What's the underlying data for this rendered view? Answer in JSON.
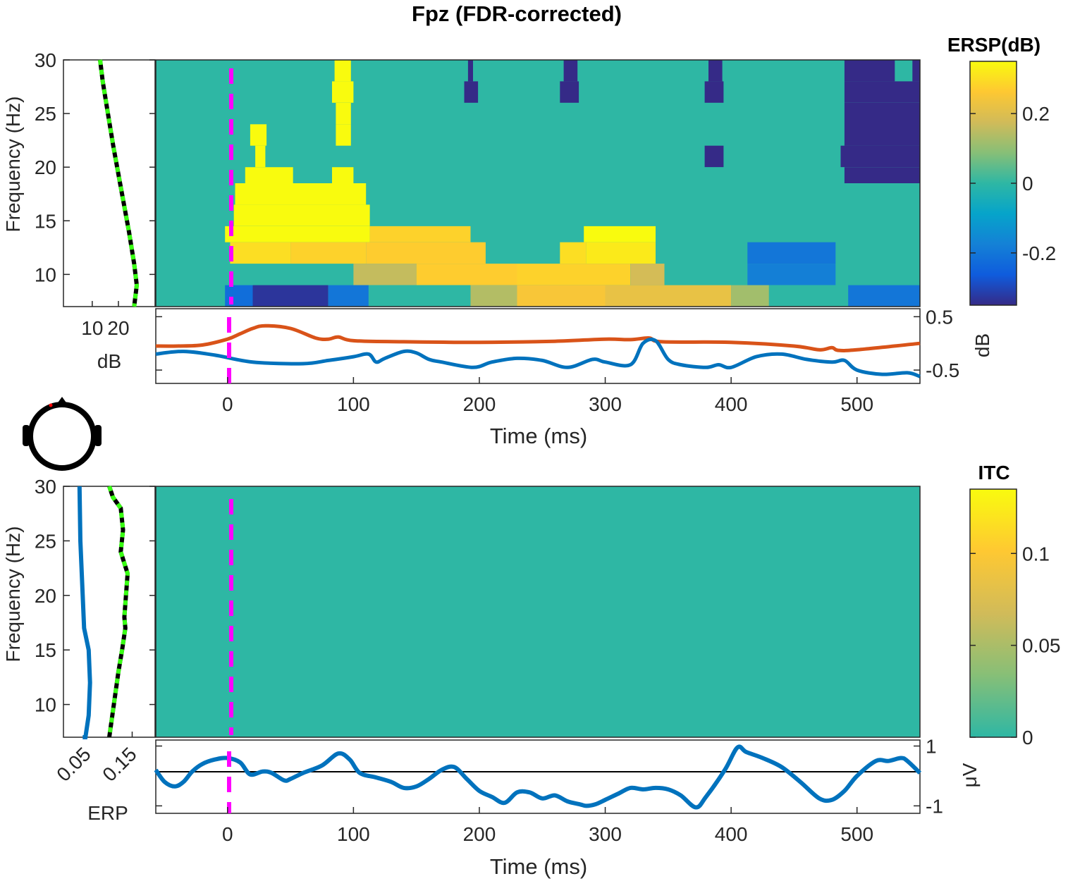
{
  "figure": {
    "title": "Fpz (FDR-corrected)"
  },
  "colors": {
    "zero": "#13BEB8",
    "blue": "#0072BD",
    "orange": "#D95319",
    "green": "#39FF14",
    "magenta": "#FF00FF",
    "axis": "#262626",
    "colormap": [
      "#352A87",
      "#0F5CDD",
      "#1481D6",
      "#06A4CA",
      "#2EB7A4",
      "#87BF77",
      "#D1BB59",
      "#FEC832",
      "#F9FB0E"
    ]
  },
  "chart_data": [
    {
      "id": "ersp",
      "type": "heatmap",
      "ylabel": "Frequency (Hz)",
      "xlim": [
        -57,
        550
      ],
      "ylim": [
        7,
        30
      ],
      "yticks": [
        10,
        15,
        20,
        25,
        30
      ],
      "colorbar": {
        "title": "ERSP(dB)",
        "range": [
          -0.35,
          0.35
        ],
        "ticks": [
          -0.2,
          0,
          0.2
        ],
        "ticklabels": [
          "-0.2",
          "0",
          "0.2"
        ]
      },
      "background_value": 0,
      "blocks": [
        {
          "t": [
            85,
            98
          ],
          "f": [
            28,
            30
          ],
          "v": 0.35
        },
        {
          "t": [
            83,
            100
          ],
          "f": [
            26,
            28
          ],
          "v": 0.35
        },
        {
          "t": [
            86,
            98
          ],
          "f": [
            24,
            26
          ],
          "v": 0.35
        },
        {
          "t": [
            86,
            98
          ],
          "f": [
            22,
            24
          ],
          "v": 0.35
        },
        {
          "t": [
            18,
            31
          ],
          "f": [
            22,
            24
          ],
          "v": 0.35
        },
        {
          "t": [
            22,
            30
          ],
          "f": [
            20,
            22
          ],
          "v": 0.35
        },
        {
          "t": [
            14,
            52
          ],
          "f": [
            18.5,
            20
          ],
          "v": 0.35
        },
        {
          "t": [
            83,
            100
          ],
          "f": [
            18.5,
            20
          ],
          "v": 0.35
        },
        {
          "t": [
            6,
            110
          ],
          "f": [
            16.5,
            18.5
          ],
          "v": 0.35
        },
        {
          "t": [
            5,
            113
          ],
          "f": [
            14.5,
            16.5
          ],
          "v": 0.35
        },
        {
          "t": [
            -2,
            113
          ],
          "f": [
            13,
            14.5
          ],
          "v": 0.35
        },
        {
          "t": [
            113,
            193
          ],
          "f": [
            13,
            14.5
          ],
          "v": 0.28
        },
        {
          "t": [
            283,
            340
          ],
          "f": [
            13,
            14.5
          ],
          "v": 0.35
        },
        {
          "t": [
            2,
            50
          ],
          "f": [
            11,
            13
          ],
          "v": 0.3
        },
        {
          "t": [
            50,
            110
          ],
          "f": [
            11,
            13
          ],
          "v": 0.28
        },
        {
          "t": [
            110,
            205
          ],
          "f": [
            11,
            13
          ],
          "v": 0.27
        },
        {
          "t": [
            264,
            285
          ],
          "f": [
            11,
            13
          ],
          "v": 0.3
        },
        {
          "t": [
            285,
            340
          ],
          "f": [
            11,
            13
          ],
          "v": 0.32
        },
        {
          "t": [
            100,
            150
          ],
          "f": [
            9,
            11
          ],
          "v": 0.16
        },
        {
          "t": [
            150,
            230
          ],
          "f": [
            9,
            11
          ],
          "v": 0.27
        },
        {
          "t": [
            230,
            320
          ],
          "f": [
            9,
            11
          ],
          "v": 0.28
        },
        {
          "t": [
            320,
            347
          ],
          "f": [
            9,
            11
          ],
          "v": 0.18
        },
        {
          "t": [
            -2,
            20
          ],
          "f": [
            7,
            9
          ],
          "v": -0.22
        },
        {
          "t": [
            20,
            80
          ],
          "f": [
            7,
            9
          ],
          "v": -0.33
        },
        {
          "t": [
            80,
            112
          ],
          "f": [
            7,
            9
          ],
          "v": -0.2
        },
        {
          "t": [
            193,
            230
          ],
          "f": [
            7,
            9
          ],
          "v": 0.14
        },
        {
          "t": [
            230,
            300
          ],
          "f": [
            7,
            9
          ],
          "v": 0.25
        },
        {
          "t": [
            300,
            400
          ],
          "f": [
            7,
            9
          ],
          "v": 0.22
        },
        {
          "t": [
            400,
            430
          ],
          "f": [
            7,
            9
          ],
          "v": 0.12
        },
        {
          "t": [
            413,
            483
          ],
          "f": [
            11,
            13
          ],
          "v": -0.2
        },
        {
          "t": [
            413,
            483
          ],
          "f": [
            9,
            11
          ],
          "v": -0.18
        },
        {
          "t": [
            493,
            550
          ],
          "f": [
            7,
            9
          ],
          "v": -0.2
        },
        {
          "t": [
            191,
            195
          ],
          "f": [
            28,
            30
          ],
          "v": -0.35
        },
        {
          "t": [
            188,
            199
          ],
          "f": [
            26,
            28
          ],
          "v": -0.35
        },
        {
          "t": [
            267,
            278
          ],
          "f": [
            28,
            30
          ],
          "v": -0.35
        },
        {
          "t": [
            264,
            279
          ],
          "f": [
            26,
            28
          ],
          "v": -0.35
        },
        {
          "t": [
            382,
            393
          ],
          "f": [
            28,
            30
          ],
          "v": -0.35
        },
        {
          "t": [
            379,
            394
          ],
          "f": [
            26,
            28
          ],
          "v": -0.35
        },
        {
          "t": [
            379,
            394
          ],
          "f": [
            20,
            22
          ],
          "v": -0.35
        },
        {
          "t": [
            490,
            530
          ],
          "f": [
            28,
            30
          ],
          "v": -0.35
        },
        {
          "t": [
            544,
            550
          ],
          "f": [
            28,
            30
          ],
          "v": -0.35
        },
        {
          "t": [
            490,
            550
          ],
          "f": [
            26,
            28
          ],
          "v": -0.35
        },
        {
          "t": [
            490,
            550
          ],
          "f": [
            22,
            26
          ],
          "v": -0.35
        },
        {
          "t": [
            487,
            550
          ],
          "f": [
            20,
            22
          ],
          "v": -0.35
        },
        {
          "t": [
            490,
            550
          ],
          "f": [
            18.5,
            20
          ],
          "v": -0.35
        }
      ]
    },
    {
      "id": "ersp_side",
      "type": "line",
      "xlabel": "dB",
      "xticks": [
        10,
        20
      ],
      "xlim": [
        -1,
        34
      ],
      "ylim": [
        7,
        30
      ],
      "series": [
        {
          "x": [
            13,
            14,
            16,
            18,
            21,
            24,
            26,
            27,
            26
          ],
          "y": [
            30,
            28,
            25,
            22,
            18,
            14,
            11,
            9,
            7
          ]
        }
      ]
    },
    {
      "id": "ersp_time",
      "type": "line",
      "ylabel": "dB",
      "xlim": [
        -57,
        550
      ],
      "ylim": [
        -0.75,
        0.65
      ],
      "yticks": [
        -0.5,
        0.5
      ],
      "yticklabels": [
        "-0.5",
        "0.5"
      ],
      "series": [
        {
          "color_key": "orange",
          "x": [
            -57,
            -40,
            -20,
            0,
            10,
            20,
            30,
            50,
            70,
            80,
            88,
            100,
            140,
            200,
            260,
            300,
            320,
            335,
            345,
            400,
            450,
            470,
            480,
            485,
            500,
            550
          ],
          "y": [
            -0.05,
            -0.05,
            -0.03,
            0.08,
            0.18,
            0.28,
            0.33,
            0.28,
            0.1,
            0.08,
            0.12,
            0.05,
            0.03,
            0.02,
            0.04,
            0.08,
            0.07,
            0.1,
            0.03,
            0.02,
            -0.05,
            -0.12,
            -0.08,
            -0.13,
            -0.12,
            0.0
          ]
        },
        {
          "color_key": "blue",
          "x": [
            -57,
            -35,
            -10,
            20,
            60,
            80,
            100,
            112,
            118,
            125,
            140,
            150,
            160,
            170,
            195,
            210,
            230,
            250,
            270,
            290,
            300,
            320,
            330,
            340,
            350,
            360,
            380,
            390,
            400,
            420,
            440,
            460,
            480,
            490,
            500,
            520,
            540,
            550
          ],
          "y": [
            -0.2,
            -0.15,
            -0.22,
            -0.35,
            -0.38,
            -0.32,
            -0.25,
            -0.2,
            -0.35,
            -0.28,
            -0.15,
            -0.18,
            -0.3,
            -0.35,
            -0.45,
            -0.35,
            -0.28,
            -0.32,
            -0.45,
            -0.3,
            -0.35,
            -0.4,
            0.0,
            0.05,
            -0.3,
            -0.4,
            -0.45,
            -0.4,
            -0.45,
            -0.25,
            -0.2,
            -0.3,
            -0.35,
            -0.32,
            -0.5,
            -0.58,
            -0.55,
            -0.62
          ]
        }
      ]
    },
    {
      "id": "itc",
      "type": "heatmap",
      "ylabel": "Frequency (Hz)",
      "xlim": [
        -57,
        550
      ],
      "ylim": [
        7,
        30
      ],
      "yticks": [
        10,
        15,
        20,
        25,
        30
      ],
      "colorbar": {
        "title": "ITC",
        "range": [
          0,
          0.135
        ],
        "ticks": [
          0,
          0.05,
          0.1
        ],
        "ticklabels": [
          "0",
          "0.05",
          "0.1"
        ]
      },
      "background_value": 0,
      "blocks": []
    },
    {
      "id": "itc_side",
      "type": "line",
      "xlabel": "ERP",
      "xticks": [
        0.05,
        0.15
      ],
      "xticklabels": [
        "0.05",
        "0.15"
      ],
      "xlim": [
        0,
        0.2
      ],
      "ylim": [
        7,
        30
      ],
      "series": [
        {
          "color_key": "blue",
          "x": [
            0.035,
            0.037,
            0.045,
            0.055,
            0.058,
            0.055,
            0.048,
            0.042
          ],
          "y": [
            30,
            25,
            17,
            15,
            12,
            9,
            7,
            7
          ]
        },
        {
          "color_key": "green",
          "x": [
            0.1,
            0.108,
            0.125,
            0.13,
            0.125,
            0.14,
            0.133,
            0.135,
            0.128,
            0.12,
            0.1
          ],
          "y": [
            30,
            29,
            28,
            26,
            24,
            22,
            18,
            17,
            15,
            13,
            7
          ]
        }
      ]
    },
    {
      "id": "erp",
      "type": "line",
      "ylabel": "μV",
      "xlabel": "Time (ms)",
      "xlim": [
        -57,
        550
      ],
      "ylim": [
        -1.25,
        1.2
      ],
      "yticks": [
        -1,
        1
      ],
      "yticklabels": [
        "-1",
        "1"
      ],
      "xticks": [
        0,
        100,
        200,
        300,
        400,
        500
      ],
      "xticklabels": [
        "0",
        "100",
        "200",
        "300",
        "400",
        "500"
      ],
      "series": [
        {
          "color_key": "blue",
          "x": [
            -57,
            -50,
            -42,
            -35,
            -28,
            -20,
            -10,
            0,
            10,
            18,
            28,
            35,
            45,
            50,
            60,
            75,
            88,
            97,
            105,
            118,
            130,
            140,
            150,
            160,
            170,
            180,
            190,
            200,
            210,
            220,
            230,
            240,
            250,
            260,
            270,
            280,
            285,
            292,
            300,
            310,
            320,
            330,
            340,
            350,
            360,
            372,
            380,
            395,
            405,
            412,
            425,
            440,
            455,
            470,
            480,
            490,
            500,
            515,
            525,
            535,
            540,
            550
          ],
          "y": [
            0.2,
            -0.2,
            -0.35,
            -0.2,
            0.15,
            0.4,
            0.55,
            0.6,
            0.45,
            0.05,
            0.15,
            0.1,
            -0.15,
            -0.1,
            0.1,
            0.35,
            0.75,
            0.55,
            0.1,
            -0.05,
            -0.2,
            -0.4,
            -0.35,
            -0.1,
            0.2,
            0.3,
            -0.1,
            -0.5,
            -0.7,
            -0.9,
            -0.55,
            -0.55,
            -0.75,
            -0.65,
            -0.85,
            -0.95,
            -1.0,
            -0.95,
            -0.8,
            -0.6,
            -0.4,
            -0.45,
            -0.4,
            -0.45,
            -0.65,
            -1.05,
            -0.7,
            0.2,
            0.95,
            0.8,
            0.6,
            0.3,
            -0.2,
            -0.75,
            -0.8,
            -0.5,
            0.0,
            0.5,
            0.5,
            0.6,
            0.5,
            0.1
          ]
        }
      ]
    }
  ]
}
